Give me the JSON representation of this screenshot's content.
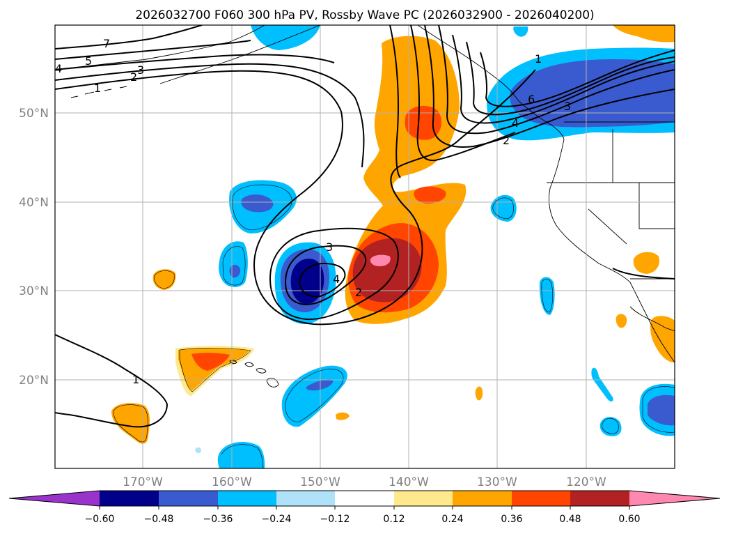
{
  "title": "2026032700 F060 300 hPa PV, Rossby Wave PC (2026032900 - 2026040200)",
  "map": {
    "lon_ticks": [
      "170°W",
      "160°W",
      "150°W",
      "140°W",
      "130°W",
      "120°W"
    ],
    "lat_ticks": [
      "50°N",
      "40°N",
      "30°N",
      "20°N"
    ],
    "gridlines": true,
    "coastlines": true
  },
  "colorbar": {
    "tick_labels": [
      "−0.60",
      "−0.48",
      "−0.36",
      "−0.24",
      "−0.12",
      "0.12",
      "0.24",
      "0.36",
      "0.48",
      "0.60"
    ],
    "colors": {
      "under": "#9933cc",
      "n060": "#00008b",
      "n048": "#3a5bd0",
      "n036": "#00bfff",
      "n024": "#afe2f8",
      "neutral": "#ffffff",
      "p012": "#ffe98c",
      "p024": "#ffa500",
      "p036": "#ff4500",
      "p048": "#b22222",
      "over": "#ff88b0"
    }
  },
  "contour_labels": [
    "7",
    "5",
    "4",
    "3",
    "2",
    "1",
    "1",
    "6",
    "3",
    "4",
    "2",
    "3",
    "4",
    "2",
    "1"
  ]
}
